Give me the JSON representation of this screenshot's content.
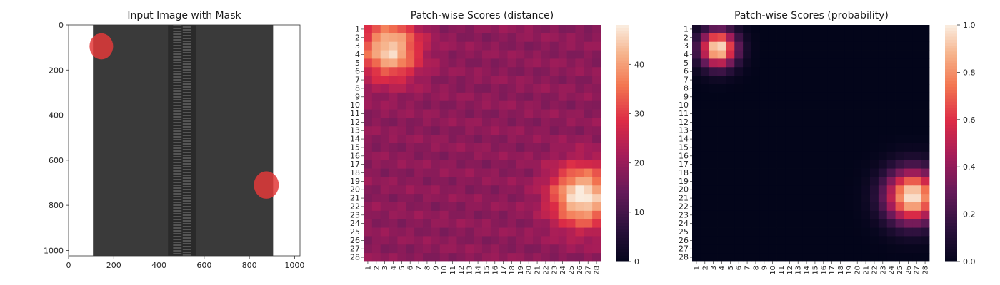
{
  "chart_data": [
    {
      "type": "image",
      "title": "Input Image with Mask",
      "xlim": [
        0,
        1024
      ],
      "ylim": [
        1024,
        0
      ],
      "xticks": [
        0,
        200,
        400,
        600,
        800,
        1000
      ],
      "yticks": [
        0,
        200,
        400,
        600,
        800,
        1000
      ],
      "xtick_labels": [
        "0",
        "200",
        "400",
        "600",
        "800",
        "1000"
      ],
      "ytick_labels": [
        "0",
        "200",
        "400",
        "600",
        "800",
        "1000"
      ],
      "fabric_x_range": [
        108,
        905
      ],
      "zipper_x_range": [
        440,
        565
      ],
      "defects": [
        {
          "cx": 145,
          "cy": 95,
          "r": 55
        },
        {
          "cx": 875,
          "cy": 710,
          "r": 58
        }
      ],
      "colors": {
        "fabric": "#3a3a3a",
        "zipper": "#555555",
        "mask": "#e23a3a"
      }
    },
    {
      "type": "heatmap",
      "title": "Patch-wise Scores (distance)",
      "rows": 28,
      "cols": 28,
      "row_labels": [
        "1",
        "2",
        "3",
        "4",
        "5",
        "6",
        "7",
        "8",
        "9",
        "10",
        "11",
        "12",
        "13",
        "14",
        "15",
        "16",
        "17",
        "18",
        "19",
        "20",
        "21",
        "22",
        "23",
        "24",
        "25",
        "26",
        "27",
        "28"
      ],
      "col_labels": [
        "1",
        "2",
        "3",
        "4",
        "5",
        "6",
        "7",
        "8",
        "9",
        "10",
        "11",
        "12",
        "13",
        "14",
        "15",
        "16",
        "17",
        "18",
        "19",
        "20",
        "21",
        "22",
        "23",
        "24",
        "25",
        "26",
        "27",
        "28"
      ],
      "vmin": 0,
      "vmax": 48,
      "colorbar_ticks": [
        0,
        10,
        20,
        30,
        40
      ],
      "colorbar_labels": [
        "0",
        "10",
        "20",
        "30",
        "40"
      ],
      "colormap": "rocket",
      "base_value": 19,
      "hotspots": [
        {
          "row": 3.4,
          "col": 3.6,
          "peak": 27,
          "spread": 2.4
        },
        {
          "row": 20.8,
          "col": 26.3,
          "peak": 30,
          "spread": 2.5
        }
      ]
    },
    {
      "type": "heatmap",
      "title": "Patch-wise Scores (probability)",
      "rows": 28,
      "cols": 28,
      "row_labels": [
        "1",
        "2",
        "3",
        "4",
        "5",
        "6",
        "7",
        "8",
        "9",
        "10",
        "11",
        "12",
        "13",
        "14",
        "15",
        "16",
        "17",
        "18",
        "19",
        "20",
        "21",
        "22",
        "23",
        "24",
        "25",
        "26",
        "27",
        "28"
      ],
      "col_labels": [
        "1",
        "2",
        "3",
        "4",
        "5",
        "6",
        "7",
        "8",
        "9",
        "10",
        "11",
        "12",
        "13",
        "14",
        "15",
        "16",
        "17",
        "18",
        "19",
        "20",
        "21",
        "22",
        "23",
        "24",
        "25",
        "26",
        "27",
        "28"
      ],
      "vmin": 0,
      "vmax": 1,
      "colorbar_ticks": [
        0.0,
        0.2,
        0.4,
        0.6,
        0.8,
        1.0
      ],
      "colorbar_labels": [
        "0.0",
        "0.2",
        "0.4",
        "0.6",
        "0.8",
        "1.0"
      ],
      "colormap": "rocket",
      "hotspots": [
        {
          "row": 3.3,
          "col": 3.6,
          "peak": 1.0,
          "spread": 1.5
        },
        {
          "row": 20.8,
          "col": 26.5,
          "peak": 1.0,
          "spread": 2.2
        }
      ]
    }
  ]
}
